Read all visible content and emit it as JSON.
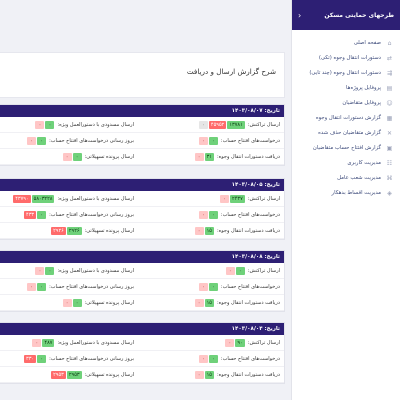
{
  "sidebar": {
    "title": "طرحهای حمایتی مسکن",
    "items": [
      {
        "label": "صفحه اصلی",
        "icon": "home-icon"
      },
      {
        "label": "دستورات انتقال وجوه (تکی)",
        "icon": "transfer-icon"
      },
      {
        "label": "دستورات انتقال وجوه (چند تایی)",
        "icon": "transfer-multi-icon"
      },
      {
        "label": "پروفایل پروژه‌ها",
        "icon": "projects-icon"
      },
      {
        "label": "پروفایل متقاضیان",
        "icon": "applicants-icon"
      },
      {
        "label": "گزارش دستورات انتقال وجوه",
        "icon": "report-icon"
      },
      {
        "label": "گزارش متقاضیان حذف شده",
        "icon": "deleted-report-icon"
      },
      {
        "label": "گزارش افتتاح حساب متقاضیان",
        "icon": "account-report-icon"
      },
      {
        "label": "مدیریت کاربری",
        "icon": "users-icon"
      },
      {
        "label": "مدیریت شعب عامل",
        "icon": "branches-icon"
      },
      {
        "label": "مدیریت اقساط بدهکار",
        "icon": "debt-icon"
      }
    ]
  },
  "page": {
    "title": "شرح گزارش ارسال و دریافت"
  },
  "blocks": [
    {
      "date": "تاریخ: ۱۴۰۳/۰۸/۰۷",
      "rows": [
        {
          "right": {
            "label": "ارسال تراکنش:",
            "badges": [
              {
                "t": "۱۳۷۸۱",
                "c": "g"
              },
              {
                "t": "۴۵۹۵۲",
                "c": "rd"
              },
              {
                "t": "۰",
                "c": "gy"
              }
            ]
          },
          "left": {
            "label": "ارسال مسدودی با دستورالعمل ویژه:",
            "badges": [
              {
                "t": "۰",
                "c": "g"
              },
              {
                "t": "۰",
                "c": "pk"
              }
            ]
          }
        },
        {
          "right": {
            "label": "درخواست‌های افتتاح حساب:",
            "badges": [
              {
                "t": "۰",
                "c": "g"
              },
              {
                "t": "۰",
                "c": "pk"
              }
            ]
          },
          "left": {
            "label": "بروز رسانی درخواست‌های افتتاح حساب:",
            "badges": [
              {
                "t": "۰",
                "c": "g"
              },
              {
                "t": "۰",
                "c": "pk"
              }
            ]
          }
        },
        {
          "right": {
            "label": "دریافت دستورات انتقال وجوه:",
            "badges": [
              {
                "t": "۳۱",
                "c": "g"
              },
              {
                "t": "۰",
                "c": "pk"
              }
            ]
          },
          "left": {
            "label": "ارسال پرونده تسهیلاتی:",
            "badges": [
              {
                "t": "۰",
                "c": "g"
              },
              {
                "t": "۰",
                "c": "pk"
              }
            ]
          }
        }
      ]
    },
    {
      "date": "تاریخ: ۱۴۰۳/۰۸/۰۵",
      "rows": [
        {
          "right": {
            "label": "ارسال تراکنش:",
            "badges": [
              {
                "t": "۲۴۳۷",
                "c": "g"
              },
              {
                "t": "۰",
                "c": "pk"
              }
            ]
          },
          "left": {
            "label": "ارسال مسدودی با دستورالعمل ویژه:",
            "badges": [
              {
                "t": "۵۸۰۳۲۲۸",
                "c": "g"
              },
              {
                "t": "۴۳۷۹۰",
                "c": "rd"
              }
            ]
          }
        },
        {
          "right": {
            "label": "درخواست‌های افتتاح حساب:",
            "badges": [
              {
                "t": "۰",
                "c": "g"
              },
              {
                "t": "۰",
                "c": "pk"
              }
            ]
          },
          "left": {
            "label": "بروز رسانی درخواست‌های افتتاح حساب:",
            "badges": [
              {
                "t": "۰",
                "c": "g"
              },
              {
                "t": "۴۳۳",
                "c": "rd"
              }
            ]
          }
        },
        {
          "right": {
            "label": "دریافت دستورات انتقال وجوه:",
            "badges": [
              {
                "t": "۱۵",
                "c": "g"
              },
              {
                "t": "۰",
                "c": "pk"
              }
            ]
          },
          "left": {
            "label": "ارسال پرونده تسهیلاتی:",
            "badges": [
              {
                "t": "۲۹۲۶",
                "c": "g"
              },
              {
                "t": "۲۹۲۶",
                "c": "rd"
              }
            ]
          }
        }
      ]
    },
    {
      "date": "تاریخ: ۱۴۰۳/۰۸/۰۸",
      "rows": [
        {
          "right": {
            "label": "ارسال تراکنش:",
            "badges": [
              {
                "t": "۰",
                "c": "g"
              },
              {
                "t": "۰",
                "c": "pk"
              }
            ]
          },
          "left": {
            "label": "ارسال مسدودی با دستورالعمل ویژه:",
            "badges": [
              {
                "t": "۰",
                "c": "g"
              },
              {
                "t": "۰",
                "c": "pk"
              }
            ]
          }
        },
        {
          "right": {
            "label": "درخواست‌های افتتاح حساب:",
            "badges": [
              {
                "t": "۰",
                "c": "g"
              },
              {
                "t": "۰",
                "c": "pk"
              }
            ]
          },
          "left": {
            "label": "بروز رسانی درخواست‌های افتتاح حساب:",
            "badges": [
              {
                "t": "۰",
                "c": "g"
              },
              {
                "t": "۰",
                "c": "pk"
              }
            ]
          }
        },
        {
          "right": {
            "label": "دریافت دستورات انتقال وجوه:",
            "badges": [
              {
                "t": "۱۵",
                "c": "g"
              },
              {
                "t": "۰",
                "c": "pk"
              }
            ]
          },
          "left": {
            "label": "ارسال پرونده تسهیلاتی:",
            "badges": [
              {
                "t": "۰",
                "c": "g"
              },
              {
                "t": "۰",
                "c": "pk"
              }
            ]
          }
        }
      ]
    },
    {
      "date": "تاریخ: ۱۴۰۳/۰۸/۰۴",
      "rows": [
        {
          "right": {
            "label": "ارسال تراکنش:",
            "badges": [
              {
                "t": "۹۰",
                "c": "g"
              },
              {
                "t": "۰",
                "c": "pk"
              }
            ]
          },
          "left": {
            "label": "ارسال مسدودی با دستورالعمل ویژه:",
            "badges": [
              {
                "t": "۴۸۷",
                "c": "g"
              },
              {
                "t": "۰",
                "c": "pk"
              }
            ]
          }
        },
        {
          "right": {
            "label": "درخواست‌های افتتاح حساب:",
            "badges": [
              {
                "t": "۰",
                "c": "g"
              },
              {
                "t": "۰",
                "c": "pk"
              }
            ]
          },
          "left": {
            "label": "بروز رسانی درخواست‌های افتتاح حساب:",
            "badges": [
              {
                "t": "۰",
                "c": "g"
              },
              {
                "t": "۳۳۰",
                "c": "rd"
              }
            ]
          }
        },
        {
          "right": {
            "label": "دریافت دستورات انتقال وجوه:",
            "badges": [
              {
                "t": "۱۵",
                "c": "g"
              },
              {
                "t": "۰",
                "c": "pk"
              }
            ]
          },
          "left": {
            "label": "ارسال پرونده تسهیلاتی:",
            "badges": [
              {
                "t": "۲۹۵۳",
                "c": "g"
              },
              {
                "t": "۲۹۵۳",
                "c": "rd"
              }
            ]
          }
        }
      ]
    }
  ]
}
